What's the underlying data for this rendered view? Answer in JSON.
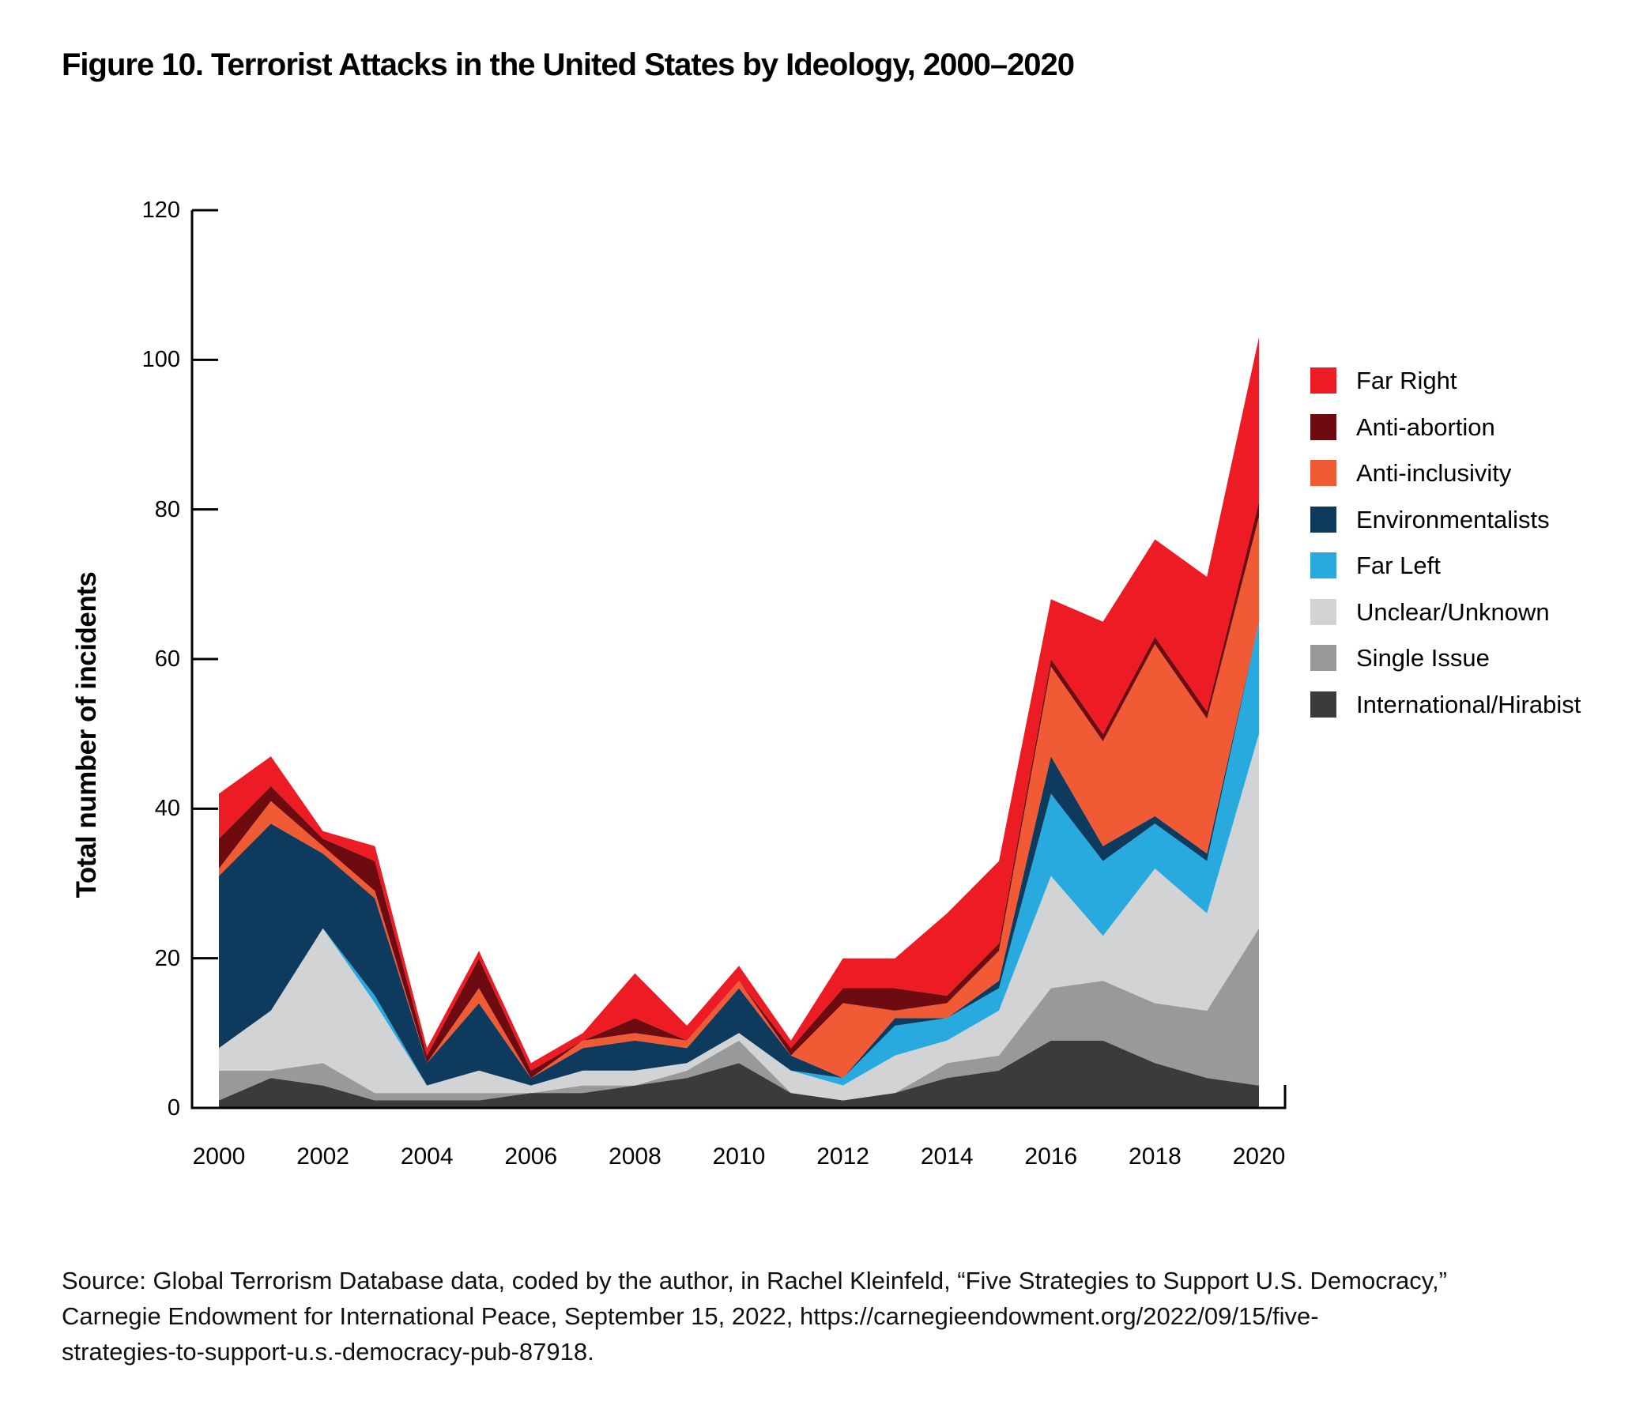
{
  "figure": {
    "title": "Figure 10. Terrorist Attacks in the United States by Ideology, 2000–2020"
  },
  "y_axis": {
    "label": "Total number of incidents",
    "ticks": [
      0,
      20,
      40,
      60,
      80,
      100,
      120
    ],
    "max": 120
  },
  "x_axis": {
    "ticks": [
      2000,
      2002,
      2004,
      2006,
      2008,
      2010,
      2012,
      2014,
      2016,
      2018,
      2020
    ]
  },
  "legend": [
    {
      "label": "Far Right",
      "color": "#ED1C24"
    },
    {
      "label": "Anti-abortion",
      "color": "#6E0B11"
    },
    {
      "label": "Anti-inclusivity",
      "color": "#F05A35"
    },
    {
      "label": "Environmentalists",
      "color": "#0E3A5E"
    },
    {
      "label": "Far Left",
      "color": "#29AADF"
    },
    {
      "label": "Unclear/Unknown",
      "color": "#D2D3D4"
    },
    {
      "label": "Single Issue",
      "color": "#97999B"
    },
    {
      "label": "International/Hirabist",
      "color": "#3B3B3D"
    }
  ],
  "chart_data": {
    "type": "area",
    "stacked": true,
    "title": "Figure 10. Terrorist Attacks in the United States by Ideology, 2000–2020",
    "xlabel": "",
    "ylabel": "Total number of incidents",
    "ylim": [
      0,
      120
    ],
    "xlim": [
      2000,
      2020
    ],
    "grid": false,
    "legend_position": "right",
    "x": [
      2000,
      2001,
      2002,
      2003,
      2004,
      2005,
      2006,
      2007,
      2008,
      2009,
      2010,
      2011,
      2012,
      2013,
      2014,
      2015,
      2016,
      2017,
      2018,
      2019,
      2020
    ],
    "series": [
      {
        "name": "International/Hirabist",
        "color": "#3B3B3D",
        "values": [
          1,
          4,
          3,
          1,
          1,
          1,
          2,
          2,
          3,
          4,
          6,
          2,
          1,
          2,
          4,
          5,
          9,
          9,
          6,
          4,
          3
        ]
      },
      {
        "name": "Single Issue",
        "color": "#97999B",
        "values": [
          4,
          1,
          3,
          1,
          1,
          1,
          0,
          1,
          0,
          1,
          3,
          0,
          0,
          0,
          2,
          2,
          7,
          8,
          8,
          9,
          21
        ]
      },
      {
        "name": "Unclear/Unknown",
        "color": "#D2D3D4",
        "values": [
          3,
          8,
          18,
          12,
          1,
          3,
          1,
          2,
          2,
          1,
          1,
          3,
          2,
          5,
          3,
          6,
          15,
          6,
          18,
          13,
          26
        ]
      },
      {
        "name": "Far Left",
        "color": "#29AADF",
        "values": [
          0,
          0,
          0,
          1,
          0,
          0,
          0,
          0,
          0,
          0,
          0,
          0,
          1,
          4,
          3,
          3,
          11,
          10,
          6,
          7,
          15
        ]
      },
      {
        "name": "Environmentalists",
        "color": "#0E3A5E",
        "values": [
          23,
          25,
          10,
          13,
          3,
          9,
          1,
          3,
          4,
          2,
          6,
          2,
          0,
          1,
          0,
          1,
          5,
          2,
          1,
          1,
          0
        ]
      },
      {
        "name": "Anti-inclusivity",
        "color": "#F05A35",
        "values": [
          1,
          3,
          1,
          1,
          0,
          2,
          0,
          1,
          1,
          1,
          1,
          0,
          10,
          1,
          2,
          4,
          12,
          14,
          23,
          18,
          14
        ]
      },
      {
        "name": "Anti-abortion",
        "color": "#6E0B11",
        "values": [
          4,
          2,
          1,
          4,
          1,
          4,
          1,
          0,
          2,
          0,
          0,
          1,
          2,
          3,
          1,
          1,
          1,
          1,
          1,
          1,
          2
        ]
      },
      {
        "name": "Far Right",
        "color": "#ED1C24",
        "values": [
          6,
          4,
          1,
          2,
          1,
          1,
          1,
          1,
          6,
          2,
          2,
          1,
          4,
          4,
          11,
          11,
          8,
          15,
          13,
          18,
          22
        ]
      }
    ],
    "totals_by_year": [
      42,
      47,
      37,
      35,
      8,
      21,
      6,
      10,
      18,
      11,
      19,
      9,
      20,
      20,
      26,
      33,
      68,
      65,
      76,
      71,
      103
    ]
  },
  "source": {
    "lines": [
      "Source: Global Terrorism Database data, coded by the author, in Rachel Kleinfeld, “Five Strategies to Support U.S. Democracy,”",
      "Carnegie Endowment for International Peace, September 15, 2022, https://carnegieendowment.org/2022/09/15/five-",
      "strategies-to-support-u.s.-democracy-pub-87918."
    ]
  }
}
